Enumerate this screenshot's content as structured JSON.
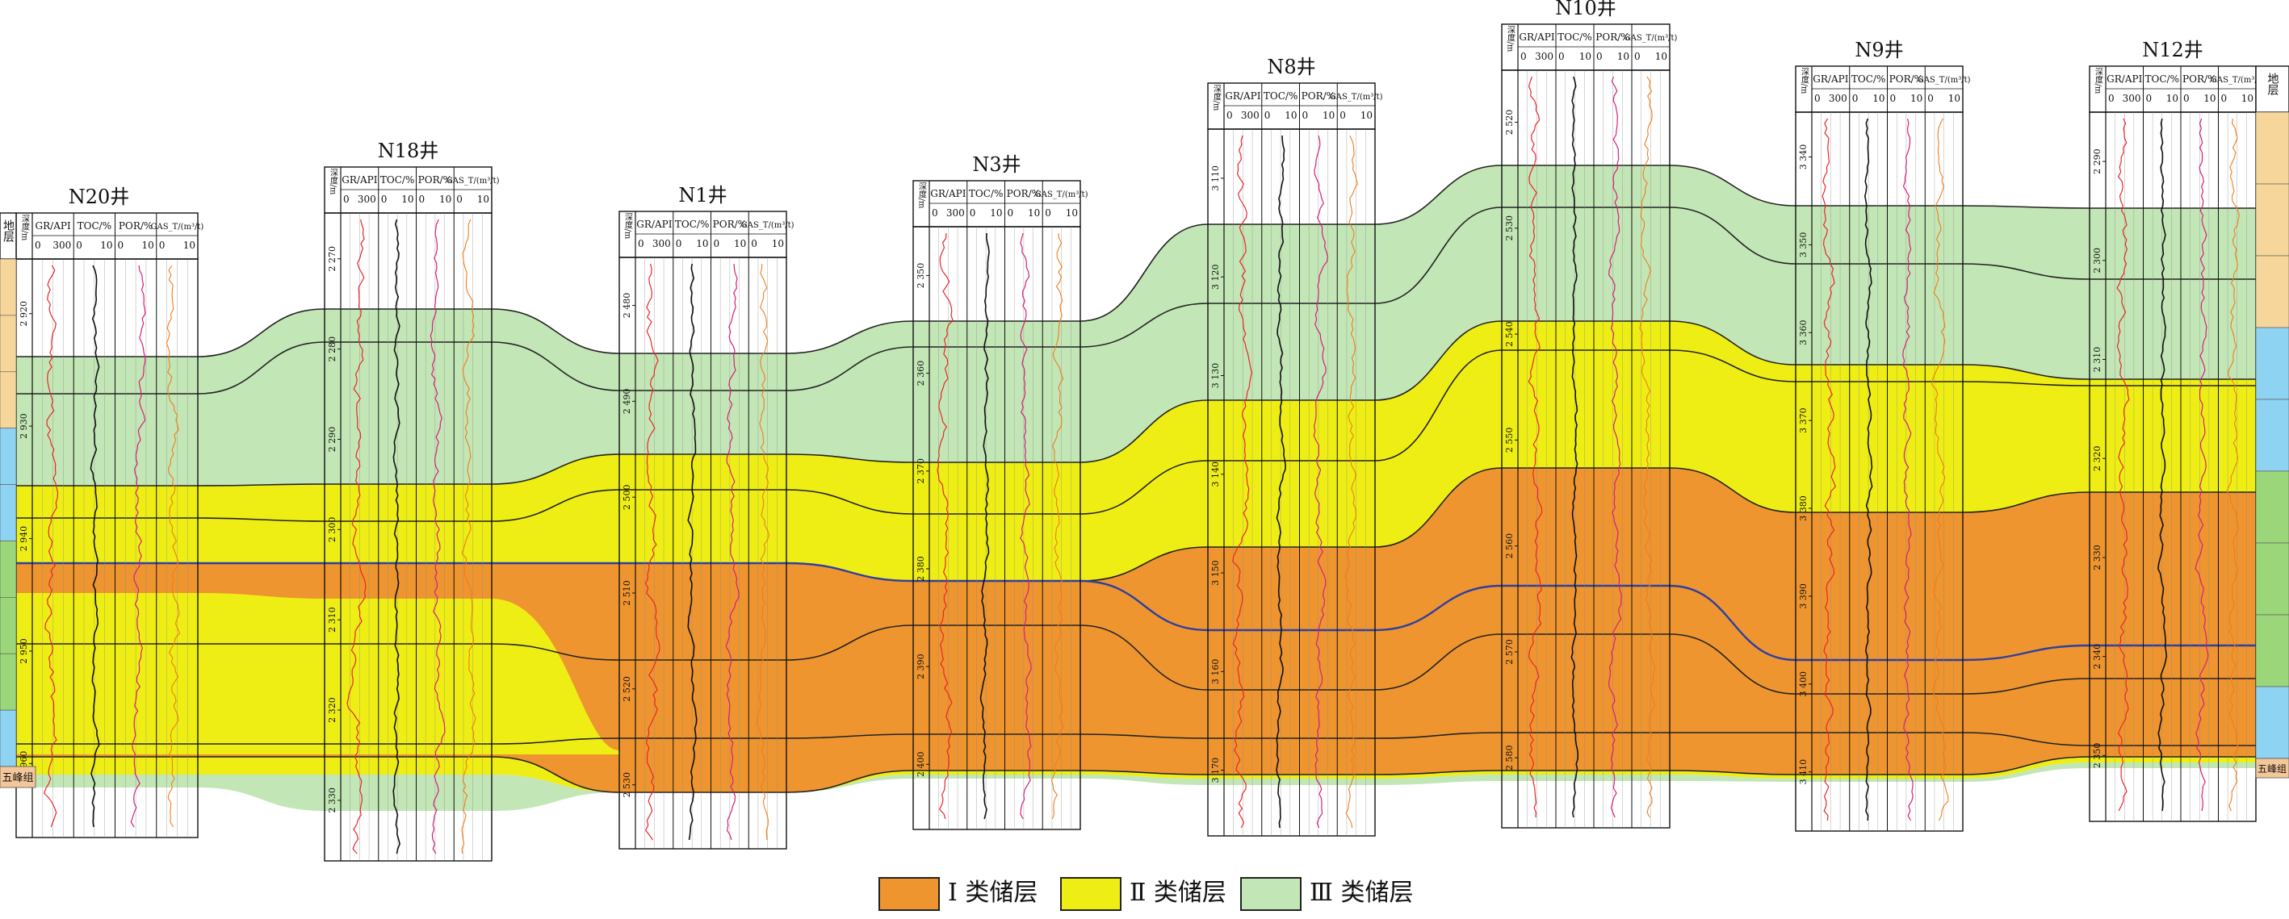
{
  "header": {
    "depth_label": "深度/m",
    "strata_label": "地层",
    "tracks": [
      {
        "name": "GR/API",
        "min": "0",
        "max": "300"
      },
      {
        "name": "TOC/%",
        "min": "0",
        "max": "10"
      },
      {
        "name": "POR/%",
        "min": "0",
        "max": "10"
      },
      {
        "name": "GAS_T/(m³/t)",
        "min": "0",
        "max": "10"
      }
    ]
  },
  "wells": [
    {
      "name": "N20井",
      "depth_ticks": [
        "2 920",
        "2 930",
        "2 940",
        "2 950",
        "2 960"
      ]
    },
    {
      "name": "N18井",
      "depth_ticks": [
        "2 270",
        "2 280",
        "2 290",
        "2 300",
        "2 310",
        "2 320",
        "2 330"
      ]
    },
    {
      "name": "N1井",
      "depth_ticks": [
        "2 480",
        "2 490",
        "2 500",
        "2 510",
        "2 520",
        "2 530"
      ]
    },
    {
      "name": "N3井",
      "depth_ticks": [
        "2 350",
        "2 360",
        "2 370",
        "2 380",
        "2 390",
        "2 400"
      ]
    },
    {
      "name": "N8井",
      "depth_ticks": [
        "3 110",
        "3 120",
        "3 130",
        "3 140",
        "3 150",
        "3 160",
        "3 170"
      ]
    },
    {
      "name": "N10井",
      "depth_ticks": [
        "2 520",
        "2 530",
        "2 540",
        "2 550",
        "2 560",
        "2 570",
        "2 580"
      ]
    },
    {
      "name": "N9井",
      "depth_ticks": [
        "3 340",
        "3 350",
        "3 360",
        "3 370",
        "3 380",
        "3 390",
        "3 400",
        "3 410"
      ]
    },
    {
      "name": "N12井",
      "depth_ticks": [
        "2 290",
        "2 300",
        "2 310",
        "2 320",
        "2 330",
        "2 340",
        "2 350"
      ]
    }
  ],
  "strata_bottom_label": "五峰组",
  "legend": [
    {
      "label": "Ⅰ 类储层",
      "color": "#ee9530"
    },
    {
      "label": "Ⅱ 类储层",
      "color": "#eeee14"
    },
    {
      "label": "Ⅲ 类储层",
      "color": "#c3e6b6"
    }
  ],
  "colors": {
    "class_1": "#ee9530",
    "class_2": "#eeee14",
    "class_3": "#c3e6b6",
    "gr_curve": "#e8262b",
    "toc_curve": "#111111",
    "por_curve": "#d4207a",
    "gas_curve": "#f07d1a",
    "marker_line": "#2f3f9f"
  }
}
